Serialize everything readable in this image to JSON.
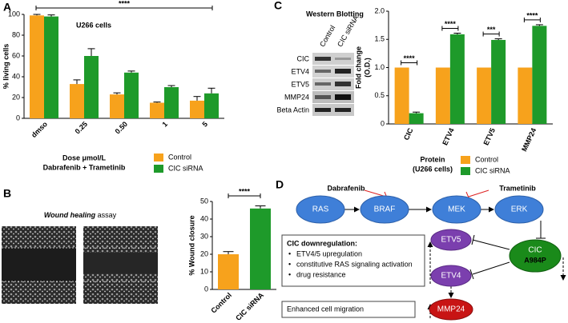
{
  "panel_labels": [
    "A",
    "B",
    "C",
    "D"
  ],
  "chart_data": [
    {
      "type": "bar",
      "title": "U266 cells",
      "y_label": "% living cells",
      "x_label": [
        "Dose μmol/L",
        "Dabrafenib + Trametinib"
      ],
      "categories": [
        "dmso",
        "0.25",
        "0.50",
        "1",
        "5"
      ],
      "series": [
        {
          "name": "Control",
          "color": "#f7a21c",
          "values": [
            99,
            33,
            23,
            15,
            17
          ],
          "errors": [
            1,
            4,
            1.5,
            0.7,
            4
          ]
        },
        {
          "name": "CIC siRNA",
          "color": "#1e9a2a",
          "values": [
            98,
            60,
            44,
            30,
            24
          ],
          "errors": [
            1.5,
            7,
            1.5,
            1.5,
            5
          ]
        }
      ],
      "ylim": [
        0,
        100
      ],
      "yticks": [
        0,
        20,
        40,
        60,
        80,
        100
      ],
      "significance": [
        "****"
      ]
    },
    {
      "type": "bar",
      "y_label": [
        "Fold change",
        "(O.D.)"
      ],
      "x_label": [
        "Protein",
        "(U266 cells)"
      ],
      "categories": [
        "CIC",
        "ETV4",
        "ETV5",
        "MMP24"
      ],
      "series": [
        {
          "name": "Control",
          "color": "#f7a21c",
          "values": [
            1,
            1,
            1,
            1
          ]
        },
        {
          "name": "CIC siRNA",
          "color": "#1e9a2a",
          "values": [
            0.19,
            1.59,
            1.49,
            1.74
          ],
          "errors": [
            0.02,
            0.02,
            0.02,
            0.02
          ]
        }
      ],
      "ylim": [
        0,
        2
      ],
      "yticks": [
        0,
        0.5,
        {
          "value": 1,
          "label": "1.0"
        },
        1.5,
        {
          "value": 2,
          "label": "2.0"
        }
      ],
      "significance": [
        "****",
        "****",
        "***",
        "****"
      ]
    },
    {
      "type": "bar",
      "y_label": "% Wound closure",
      "categories": [
        "Control",
        "CIC siRNA"
      ],
      "values": [
        20,
        46
      ],
      "errors": [
        1.5,
        1.5
      ],
      "colors": [
        "#f7a21c",
        "#1e9a2a"
      ],
      "ylim": [
        0,
        50
      ],
      "yticks": [
        0,
        10,
        20,
        30,
        40,
        50
      ],
      "significance": [
        "****"
      ]
    }
  ],
  "western_blot": {
    "title": "Western Blotting",
    "lanes": [
      "Control",
      "CIC siRNA"
    ],
    "proteins": [
      "CIC",
      "ETV4",
      "ETV5",
      "MMP24",
      "Beta Actin"
    ]
  },
  "wound_healing": {
    "title": "Wound healing",
    "title_suffix": "assay"
  },
  "diagram": {
    "drugs": [
      "Dabrafenib",
      "Trametinib"
    ],
    "nodes": [
      {
        "label": "RAS"
      },
      {
        "label": "BRAF"
      },
      {
        "label": "MEK"
      },
      {
        "label": "ERK"
      },
      {
        "label": "ETV5"
      },
      {
        "label": "ETV4"
      },
      {
        "label": "CIC",
        "sublabel": "A984P"
      },
      {
        "label": "MMP24"
      }
    ],
    "box": {
      "title": "CIC downregulation:",
      "items": [
        "ETV4/5 upregulation",
        "constitutive RAS signaling activation",
        "drug resistance"
      ]
    },
    "outcome": "Enhanced cell migration"
  }
}
